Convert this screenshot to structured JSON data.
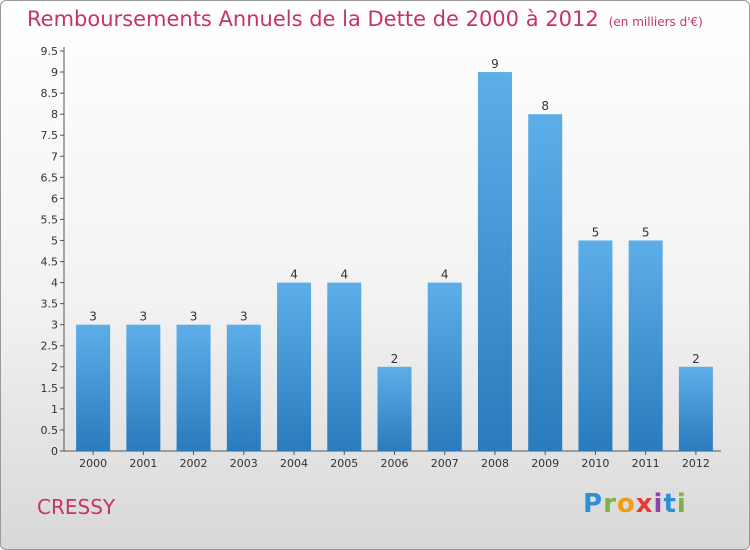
{
  "title": "Remboursements Annuels de la Dette de 2000 à 2012",
  "unit": "(en milliers d'€)",
  "town": "CRESSY",
  "logo": [
    "P",
    "r",
    "o",
    "x",
    "i",
    "t",
    "i"
  ],
  "colors": {
    "bar_top": "#5daee8",
    "bar_bottom": "#2a7bbd",
    "title": "#c8326b"
  },
  "chart_data": {
    "type": "bar",
    "categories": [
      "2000",
      "2001",
      "2002",
      "2003",
      "2004",
      "2005",
      "2006",
      "2007",
      "2008",
      "2009",
      "2010",
      "2011",
      "2012"
    ],
    "values": [
      3,
      3,
      3,
      3,
      4,
      4,
      2,
      4,
      9,
      8,
      5,
      5,
      2
    ],
    "value_labels": [
      "3",
      "3",
      "3",
      "3",
      "4",
      "4",
      "2",
      "4",
      "9",
      "8",
      "5",
      "5",
      "2"
    ],
    "y_ticks": [
      "0",
      "0.5",
      "1",
      "1.5",
      "2",
      "2.5",
      "3",
      "3.5",
      "4",
      "4.5",
      "5",
      "5.5",
      "6",
      "6.5",
      "7",
      "7.5",
      "8",
      "8.5",
      "9",
      "9.5"
    ],
    "ylim": [
      0,
      9.5
    ],
    "grid": false,
    "title": "Remboursements Annuels de la Dette de 2000 à 2012",
    "xlabel": "",
    "ylabel": ""
  }
}
